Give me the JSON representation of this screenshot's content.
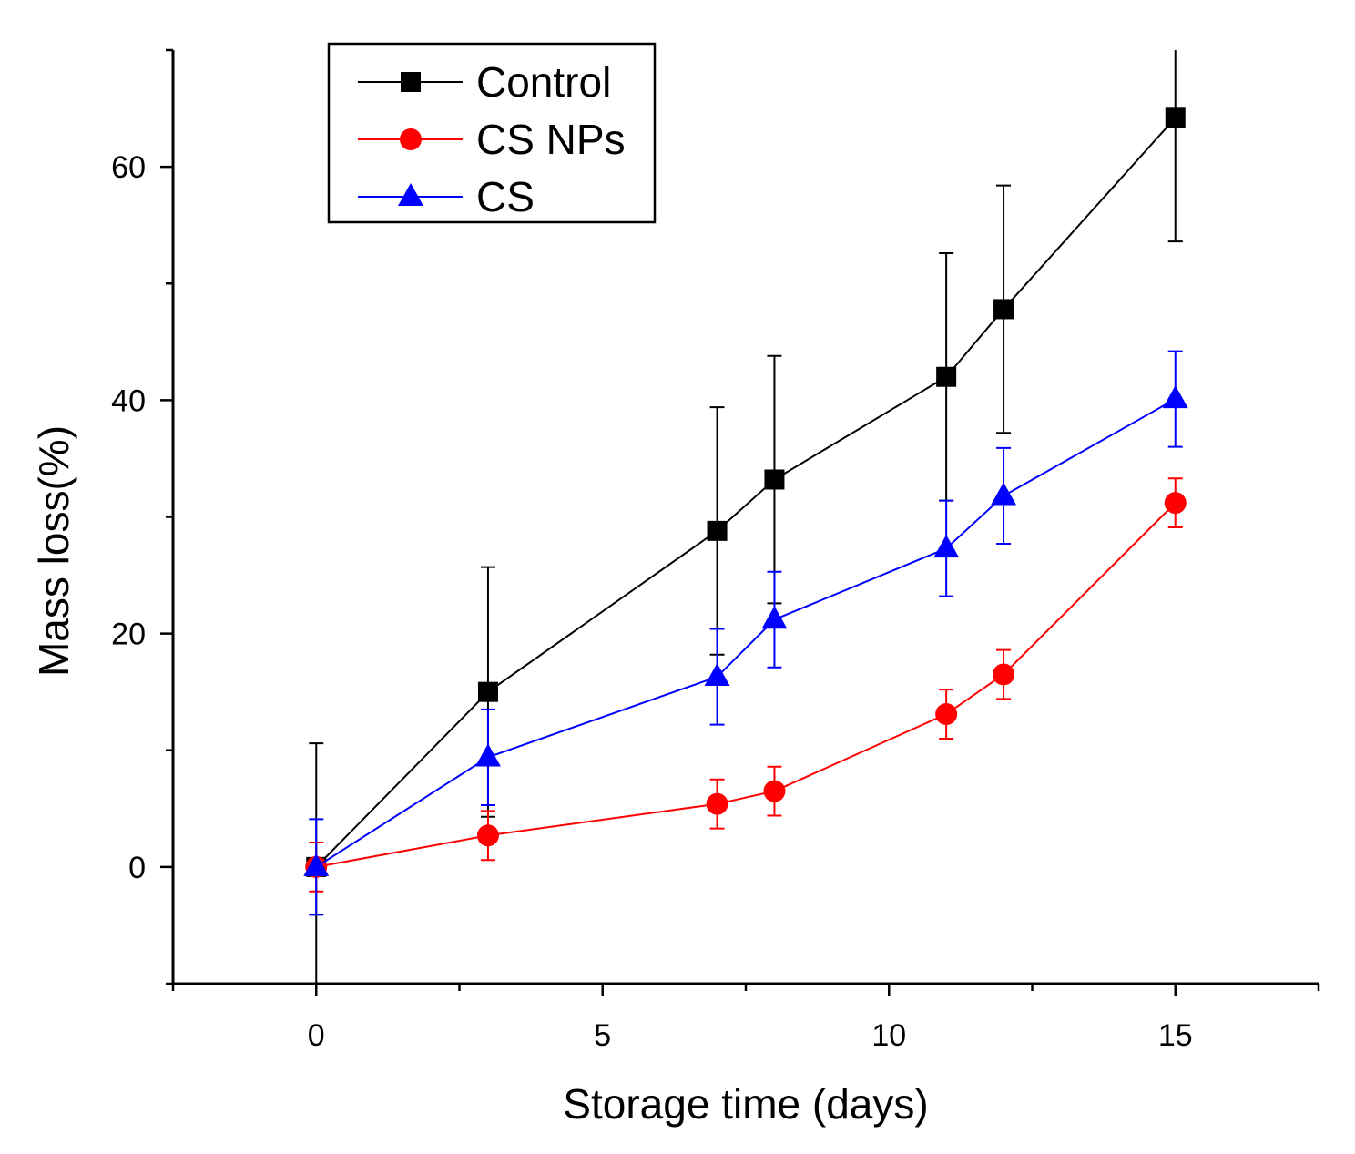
{
  "chart_data": {
    "type": "line",
    "title": "",
    "xlabel": "Storage time (days)",
    "ylabel": "Mass loss(%)",
    "xlim": [
      -2.5,
      17.5
    ],
    "ylim": [
      -10,
      70
    ],
    "x_ticks": [
      0,
      5,
      10,
      15
    ],
    "x_tick_labels": [
      "0",
      "5",
      "10",
      "15"
    ],
    "x_minor_ticks": [
      -2.5,
      2.5,
      7.5,
      12.5,
      17.5
    ],
    "y_ticks": [
      0,
      20,
      40,
      60
    ],
    "y_tick_labels": [
      "0",
      "20",
      "40",
      "60"
    ],
    "y_minor_ticks": [
      -10,
      10,
      30,
      50,
      70
    ],
    "grid": false,
    "legend_position": "top-left",
    "x": [
      0,
      3,
      7,
      8,
      11,
      12,
      15
    ],
    "series": [
      {
        "name": "Control",
        "color": "#000000",
        "marker": "square",
        "values": [
          0,
          15.0,
          28.8,
          33.2,
          42.0,
          47.8,
          64.2
        ],
        "errors": [
          10.6,
          10.7,
          10.6,
          10.6,
          10.6,
          10.6,
          10.6
        ]
      },
      {
        "name": "CS NPs",
        "color": "#ff0000",
        "marker": "circle",
        "values": [
          0,
          2.7,
          5.4,
          6.5,
          13.1,
          16.5,
          31.2
        ],
        "errors": [
          2.1,
          2.1,
          2.1,
          2.1,
          2.1,
          2.1,
          2.1
        ]
      },
      {
        "name": "CS",
        "color": "#0000ff",
        "marker": "triangle",
        "values": [
          0,
          9.4,
          16.3,
          21.2,
          27.3,
          31.8,
          40.1
        ],
        "errors": [
          4.1,
          4.1,
          4.1,
          4.1,
          4.1,
          4.1,
          4.1
        ]
      }
    ]
  }
}
